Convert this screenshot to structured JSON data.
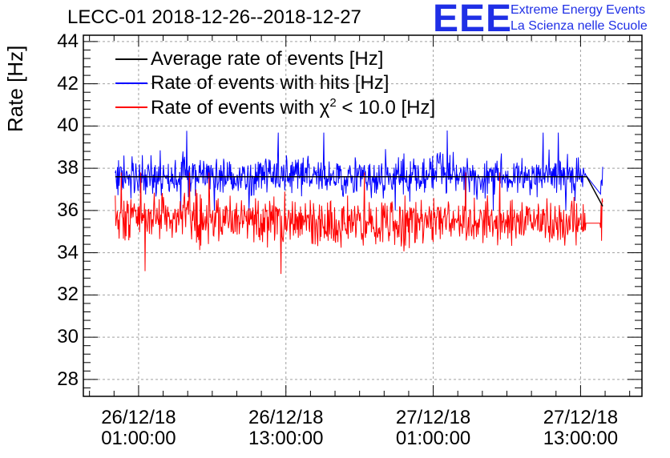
{
  "chart_data": {
    "type": "line",
    "title": "LECC-01 2018-12-26--2018-12-27",
    "xlabel": "",
    "ylabel": "Rate [Hz]",
    "ylim": [
      27.2,
      44.3
    ],
    "yticks": [
      28,
      30,
      32,
      34,
      36,
      38,
      40,
      42,
      44
    ],
    "x_range_hours": [
      -4.5,
      41.0
    ],
    "x_ticks": [
      {
        "hours": 0,
        "line1": "26/12/18",
        "line2": "01:00:00"
      },
      {
        "hours": 12,
        "line1": "26/12/18",
        "line2": "13:00:00"
      },
      {
        "hours": 24,
        "line1": "27/12/18",
        "line2": "01:00:00"
      },
      {
        "hours": 36,
        "line1": "27/12/18",
        "line2": "13:00:00"
      }
    ],
    "x_data_range_hours": [
      -1.9,
      37.8
    ],
    "legend_position": "top-left",
    "series": [
      {
        "name": "Average rate of events [Hz]",
        "color": "#000000",
        "x_hours": [
          -1.9,
          8,
          18,
          28,
          36.5,
          37.8
        ],
        "values": [
          37.6,
          37.6,
          37.6,
          37.6,
          37.6,
          36.2
        ]
      },
      {
        "name": "Rate of events with hits [Hz]",
        "color": "#0000ff",
        "x_hours": [
          -1.9,
          5,
          10,
          15,
          20,
          25,
          30,
          36,
          36.4,
          37.6,
          37.8
        ],
        "values": [
          37.6,
          37.7,
          37.6,
          37.6,
          37.6,
          37.7,
          37.6,
          37.6,
          37.7,
          36.8,
          37.3
        ],
        "spread": 1.1,
        "peak": 40.1,
        "trough": 36.0
      },
      {
        "name": "Rate of events with χ2 < 10.0 [Hz]",
        "color": "#ff0000",
        "x_hours": [
          -1.9,
          5,
          10,
          15,
          20,
          25,
          30,
          36,
          36.4,
          37.6,
          37.8
        ],
        "values": [
          35.6,
          35.6,
          35.5,
          35.4,
          35.4,
          35.5,
          35.4,
          35.4,
          35.4,
          35.4,
          36.0
        ],
        "spread": 1.3,
        "peak": 37.8,
        "trough": 32.9
      }
    ]
  },
  "legend": {
    "items": [
      {
        "label": "Average rate of events [Hz]",
        "color": "#000000"
      },
      {
        "label": "Rate of events with hits [Hz]",
        "color": "#0000ff"
      },
      {
        "label_prefix": "Rate of events with ",
        "chi": "χ",
        "sup": "2",
        "label_suffix": " < 10.0 [Hz]",
        "color": "#ff0000"
      }
    ]
  },
  "logo": {
    "mark": "EEE",
    "line1": "Extreme Energy Events",
    "line2": "La Scienza nelle Scuole",
    "color": "#1f2fe6"
  }
}
